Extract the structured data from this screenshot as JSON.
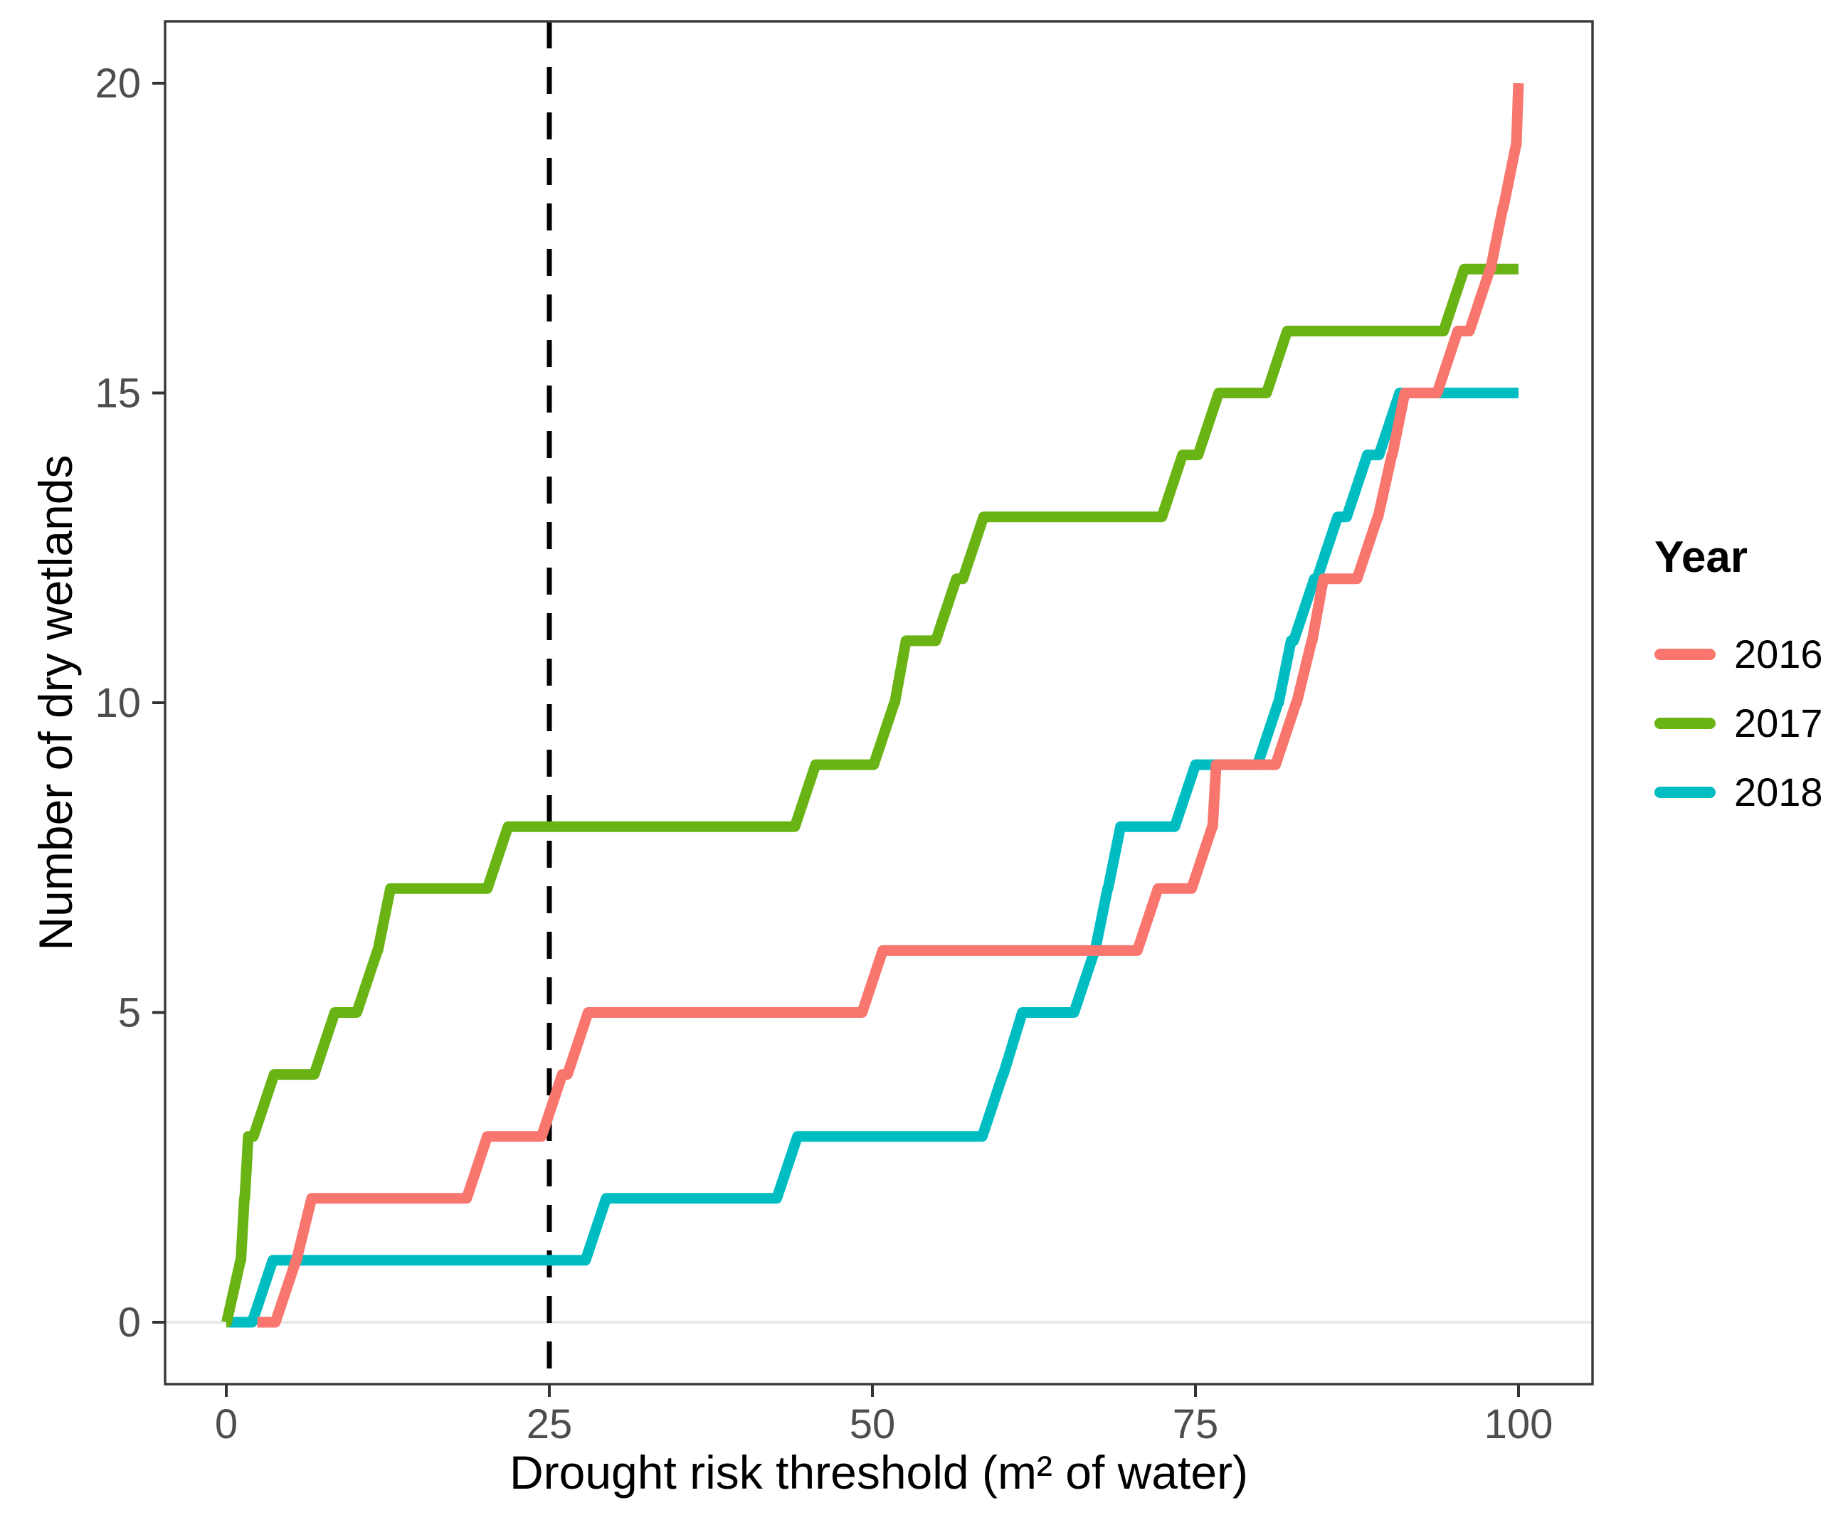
{
  "chart_data": {
    "type": "step",
    "title": "",
    "xlabel": "Drought risk threshold (m² of water)",
    "ylabel": "Number of dry wetlands",
    "xlim": [
      0,
      100
    ],
    "ylim": [
      0,
      20
    ],
    "x_tick_values": [
      0,
      25,
      50,
      75,
      100
    ],
    "x_tick_labels": [
      "0",
      "25",
      "50",
      "75",
      "100"
    ],
    "y_tick_values": [
      0,
      5,
      10,
      15,
      20
    ],
    "y_tick_labels": [
      "0",
      "5",
      "10",
      "15",
      "20"
    ],
    "grid": "off",
    "zero_baseline": {
      "y": 0,
      "color": "#e8e8e8"
    },
    "vline": {
      "x": 25,
      "style": "dashed",
      "color": "#000000"
    },
    "legend": {
      "title": "Year",
      "position": "right"
    },
    "series": [
      {
        "name": "2018",
        "color": "#00BDC2",
        "start": [
          0.2,
          0
        ],
        "steps": [
          [
            2.8,
            1
          ],
          [
            28.6,
            2
          ],
          [
            43.4,
            3
          ],
          [
            59.3,
            4
          ],
          [
            60.8,
            5
          ],
          [
            66.4,
            6
          ],
          [
            67.4,
            7
          ],
          [
            68.4,
            8
          ],
          [
            74.2,
            9
          ],
          [
            80.6,
            10
          ],
          [
            81.6,
            11
          ],
          [
            83.4,
            12
          ],
          [
            85.2,
            13
          ],
          [
            87.5,
            14
          ],
          [
            90,
            15
          ]
        ],
        "end_x": 100
      },
      {
        "name": "2017",
        "color": "#69B414",
        "start": [
          0,
          0
        ],
        "steps": [
          [
            0.3,
            1
          ],
          [
            0.6,
            2
          ],
          [
            0.9,
            3
          ],
          [
            2.9,
            4
          ],
          [
            7.6,
            5
          ],
          [
            10.9,
            6
          ],
          [
            11.9,
            7
          ],
          [
            21,
            8
          ],
          [
            44.8,
            9
          ],
          [
            50.9,
            10
          ],
          [
            51.8,
            11
          ],
          [
            55.7,
            12
          ],
          [
            57.8,
            13
          ],
          [
            73.2,
            14
          ],
          [
            76,
            15
          ],
          [
            81.3,
            16
          ],
          [
            95,
            17
          ]
        ],
        "end_x": 100
      },
      {
        "name": "2016",
        "color": "#F8766D",
        "start": [
          2.4,
          0
        ],
        "steps": [
          [
            4.6,
            1
          ],
          [
            5.8,
            2
          ],
          [
            19.4,
            3
          ],
          [
            25.2,
            4
          ],
          [
            27.2,
            5
          ],
          [
            50,
            6
          ],
          [
            71.3,
            7
          ],
          [
            75.5,
            8
          ],
          [
            75.8,
            9
          ],
          [
            82,
            10
          ],
          [
            83.2,
            11
          ],
          [
            84.1,
            12
          ],
          [
            88.3,
            13
          ],
          [
            89.4,
            14
          ],
          [
            90.4,
            15
          ],
          [
            94.5,
            16
          ],
          [
            97,
            17
          ],
          [
            98,
            18
          ],
          [
            99,
            19
          ],
          [
            100,
            20
          ]
        ],
        "end_x": 100
      }
    ],
    "legend_order": [
      "2016",
      "2017",
      "2018"
    ]
  }
}
